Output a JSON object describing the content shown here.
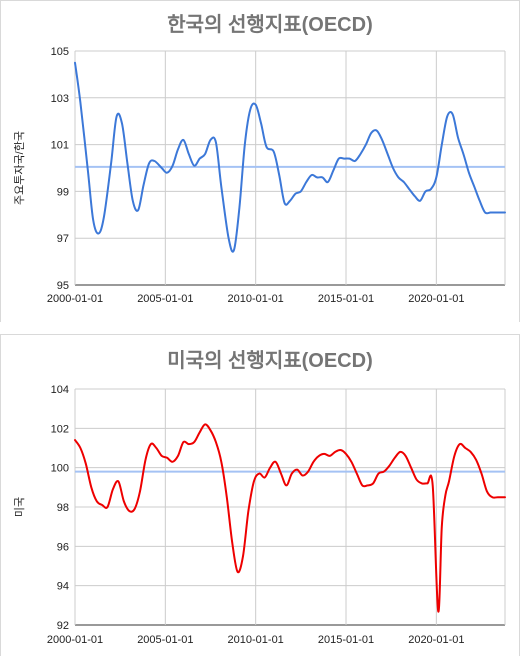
{
  "chart_data": [
    {
      "type": "line",
      "title": "한국의 선행지표(OECD)",
      "xlabel": "",
      "ylabel": "주요투자국/한국",
      "ylim": [
        95,
        105
      ],
      "yticks": [
        95,
        97,
        99,
        101,
        103,
        105
      ],
      "xlim": [
        2000.0,
        2023.8
      ],
      "xticks": [
        2000,
        2005,
        2010,
        2015,
        2020
      ],
      "xtick_labels": [
        "2000-01-01",
        "2005-01-01",
        "2010-01-01",
        "2015-01-01",
        "2020-01-01"
      ],
      "grid": true,
      "legend": "none",
      "reference_line": 100.05,
      "colors": {
        "series": "#3c78d8",
        "reference": "#a4c2f4"
      },
      "series": [
        {
          "x": [
            2000.0,
            2000.3,
            2000.7,
            2001.0,
            2001.3,
            2001.6,
            2002.0,
            2002.3,
            2002.6,
            2002.9,
            2003.2,
            2003.5,
            2003.8,
            2004.1,
            2004.4,
            2004.8,
            2005.1,
            2005.4,
            2005.7,
            2006.0,
            2006.3,
            2006.6,
            2006.9,
            2007.2,
            2007.5,
            2007.8,
            2008.1,
            2008.5,
            2008.8,
            2009.1,
            2009.4,
            2009.7,
            2010.0,
            2010.3,
            2010.6,
            2011.0,
            2011.3,
            2011.6,
            2011.9,
            2012.2,
            2012.5,
            2012.8,
            2013.1,
            2013.4,
            2013.7,
            2014.0,
            2014.3,
            2014.6,
            2014.9,
            2015.2,
            2015.5,
            2015.8,
            2016.1,
            2016.4,
            2016.7,
            2017.0,
            2017.3,
            2017.6,
            2017.9,
            2018.2,
            2018.5,
            2018.8,
            2019.1,
            2019.4,
            2019.7,
            2020.0,
            2020.3,
            2020.6,
            2020.9,
            2021.2,
            2021.5,
            2021.8,
            2022.1,
            2022.4,
            2022.7,
            2023.0,
            2023.3,
            2023.6,
            2023.8
          ],
          "y": [
            104.5,
            102.8,
            100.0,
            97.8,
            97.2,
            97.9,
            100.2,
            102.2,
            101.9,
            100.2,
            98.6,
            98.2,
            99.3,
            100.2,
            100.3,
            100.0,
            99.8,
            100.1,
            100.8,
            101.2,
            100.6,
            100.1,
            100.4,
            100.6,
            101.2,
            101.1,
            99.2,
            97.0,
            96.5,
            98.3,
            101.0,
            102.5,
            102.7,
            101.9,
            100.9,
            100.7,
            99.7,
            98.5,
            98.6,
            98.9,
            99.0,
            99.4,
            99.7,
            99.6,
            99.6,
            99.4,
            99.9,
            100.4,
            100.4,
            100.4,
            100.3,
            100.6,
            101.0,
            101.5,
            101.6,
            101.2,
            100.6,
            100.0,
            99.6,
            99.4,
            99.1,
            98.8,
            98.6,
            99.0,
            99.1,
            99.6,
            101.0,
            102.2,
            102.3,
            101.3,
            100.6,
            99.8,
            99.2,
            98.6,
            98.1,
            98.1,
            98.1,
            98.1,
            98.1
          ],
          "color": "#3c78d8"
        }
      ]
    },
    {
      "type": "line",
      "title": "미국의 선행지표(OECD)",
      "xlabel": "",
      "ylabel": "미국",
      "ylim": [
        92,
        104
      ],
      "yticks": [
        92,
        94,
        96,
        98,
        100,
        102,
        104
      ],
      "xlim": [
        2000.0,
        2023.8
      ],
      "xticks": [
        2000,
        2005,
        2010,
        2015,
        2020
      ],
      "xtick_labels": [
        "2000-01-01",
        "2005-01-01",
        "2010-01-01",
        "2015-01-01",
        "2020-01-01"
      ],
      "grid": true,
      "legend": "none",
      "reference_line": 99.8,
      "colors": {
        "series": "#ee0000",
        "reference": "#a4c2f4"
      },
      "series": [
        {
          "x": [
            2000.0,
            2000.3,
            2000.6,
            2000.9,
            2001.2,
            2001.5,
            2001.8,
            2002.1,
            2002.4,
            2002.7,
            2003.0,
            2003.3,
            2003.6,
            2003.9,
            2004.2,
            2004.5,
            2004.8,
            2005.1,
            2005.4,
            2005.7,
            2006.0,
            2006.3,
            2006.6,
            2006.9,
            2007.2,
            2007.5,
            2007.8,
            2008.1,
            2008.4,
            2008.7,
            2009.0,
            2009.3,
            2009.6,
            2009.9,
            2010.2,
            2010.5,
            2010.8,
            2011.1,
            2011.4,
            2011.7,
            2012.0,
            2012.3,
            2012.6,
            2012.9,
            2013.2,
            2013.5,
            2013.8,
            2014.1,
            2014.4,
            2014.7,
            2015.0,
            2015.3,
            2015.6,
            2015.9,
            2016.2,
            2016.5,
            2016.8,
            2017.1,
            2017.4,
            2017.7,
            2018.0,
            2018.3,
            2018.6,
            2018.9,
            2019.2,
            2019.5,
            2019.8,
            2020.1,
            2020.3,
            2020.5,
            2020.7,
            2021.0,
            2021.3,
            2021.6,
            2021.9,
            2022.2,
            2022.5,
            2022.8,
            2023.1,
            2023.4,
            2023.8
          ],
          "y": [
            101.4,
            101.0,
            100.2,
            99.0,
            98.3,
            98.1,
            98.0,
            98.9,
            99.3,
            98.3,
            97.8,
            97.9,
            98.8,
            100.4,
            101.2,
            101.0,
            100.6,
            100.5,
            100.3,
            100.6,
            101.3,
            101.2,
            101.3,
            101.8,
            102.2,
            101.9,
            101.3,
            100.3,
            98.5,
            96.2,
            94.7,
            95.5,
            97.8,
            99.3,
            99.7,
            99.5,
            100.0,
            100.3,
            99.7,
            99.1,
            99.7,
            99.9,
            99.6,
            99.8,
            100.3,
            100.6,
            100.7,
            100.6,
            100.8,
            100.9,
            100.7,
            100.3,
            99.7,
            99.1,
            99.1,
            99.2,
            99.7,
            99.8,
            100.1,
            100.5,
            100.8,
            100.6,
            100.0,
            99.4,
            99.2,
            99.2,
            99.1,
            92.7,
            97.0,
            98.6,
            99.3,
            100.6,
            101.2,
            101.0,
            100.8,
            100.4,
            99.7,
            98.8,
            98.5,
            98.5,
            98.5
          ],
          "color": "#ee0000"
        }
      ]
    }
  ]
}
